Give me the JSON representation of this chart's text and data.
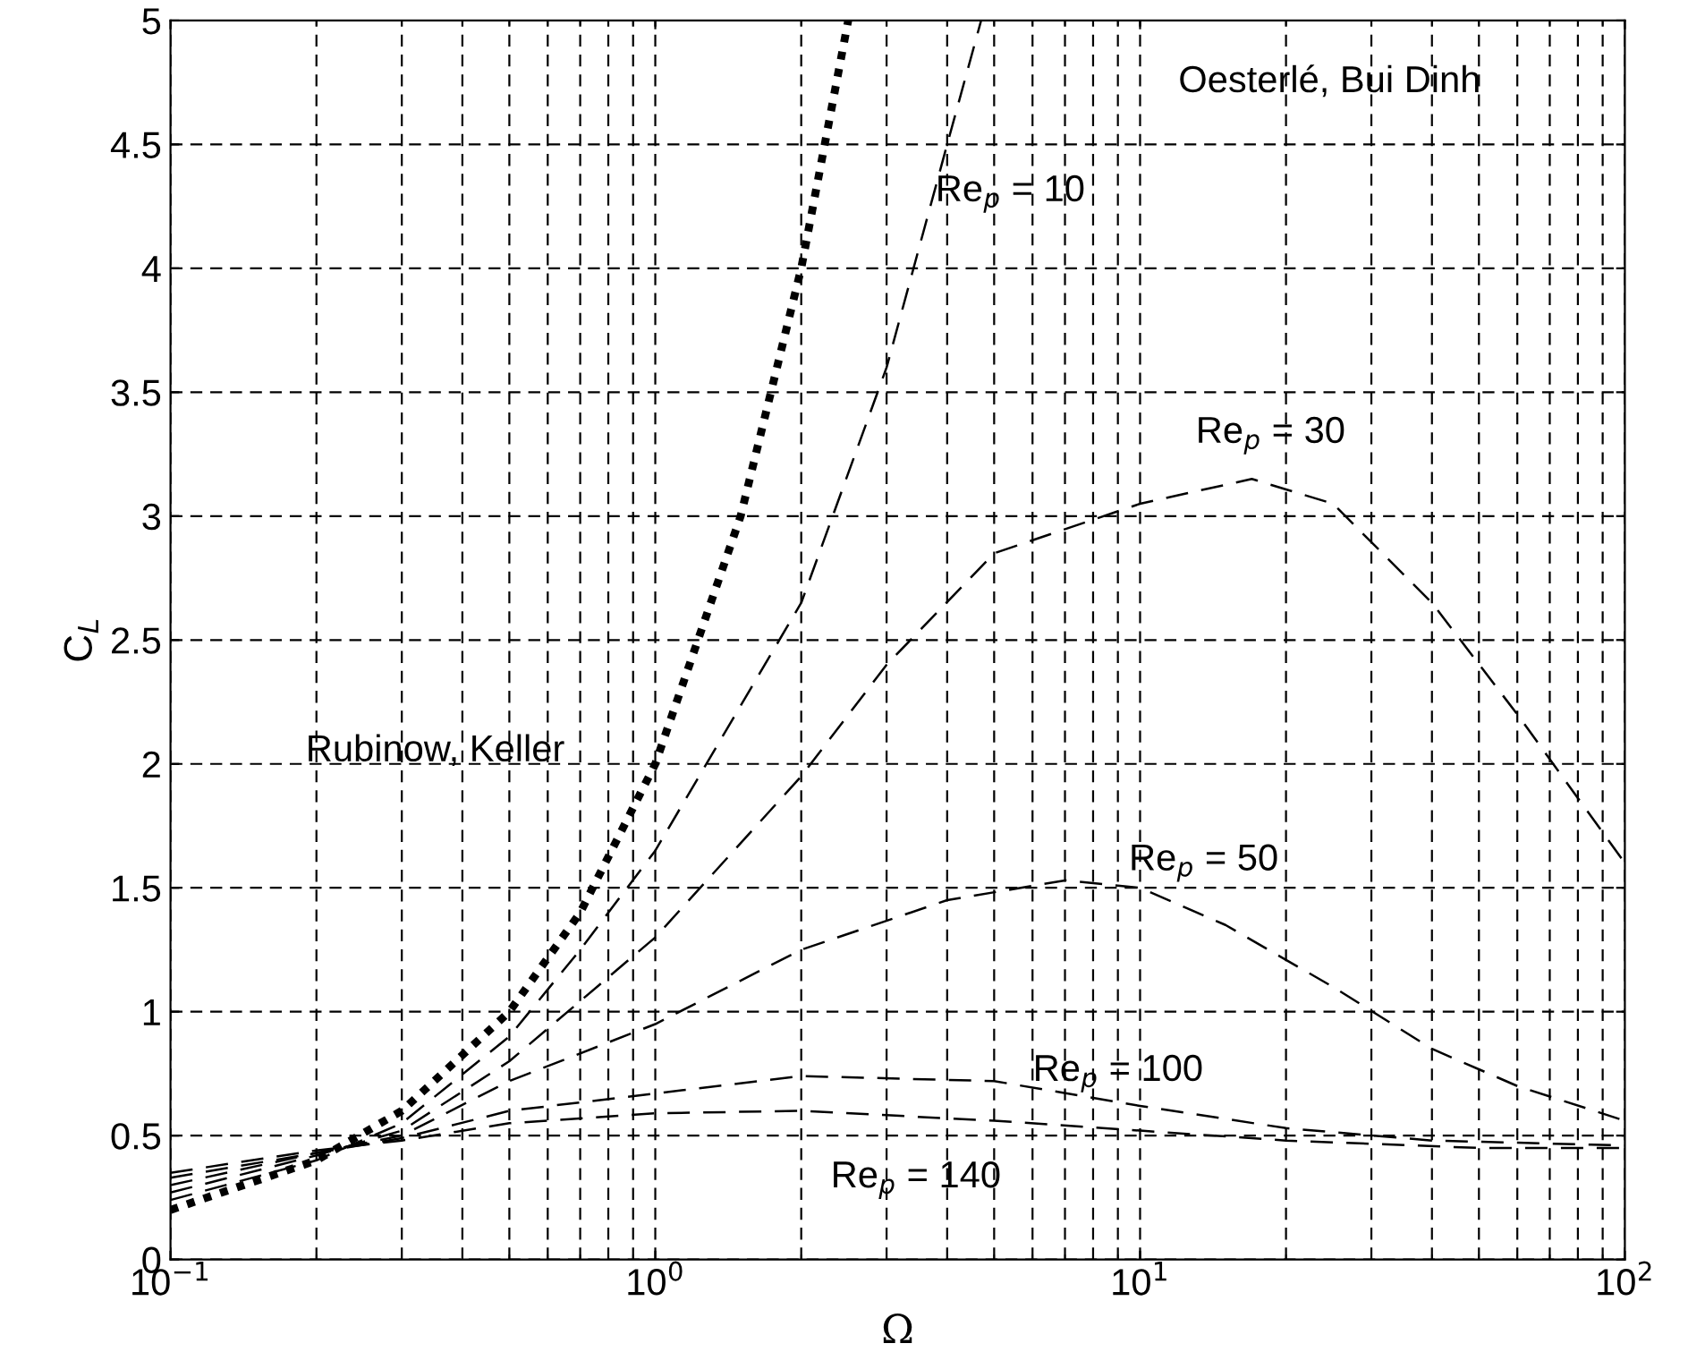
{
  "chart_data": {
    "type": "line",
    "xlabel": "Ω",
    "ylabel": "C$_{L}$",
    "log": "x",
    "grid": true,
    "legend": false,
    "marker": "none",
    "xlim": [
      0.1,
      100
    ],
    "ylim": [
      0,
      5
    ],
    "xticks": [
      {
        "value": 0.1,
        "label": "10$^{−1}$"
      },
      {
        "value": 1,
        "label": "10$^{0}$"
      },
      {
        "value": 10,
        "label": "10$^{1}$"
      },
      {
        "value": 100,
        "label": "10$^{2}$"
      }
    ],
    "yticks": [
      0,
      0.5,
      1,
      1.5,
      2,
      2.5,
      3,
      3.5,
      4,
      4.5,
      5
    ],
    "series": [
      {
        "color": "#000000",
        "line_style": "dotted",
        "x": [
          0.1,
          0.2,
          0.3,
          0.5,
          0.7,
          1,
          1.5,
          2,
          2.5
        ],
        "values": [
          0.2,
          0.4,
          0.6,
          1.0,
          1.4,
          2.0,
          3.0,
          4.0,
          5.0
        ]
      },
      {
        "color": "#000000",
        "line_style": "dashed",
        "x": [
          0.1,
          0.2,
          0.3,
          0.5,
          0.7,
          1,
          2,
          3,
          4,
          4.7
        ],
        "values": [
          0.24,
          0.4,
          0.55,
          0.9,
          1.25,
          1.65,
          2.65,
          3.6,
          4.5,
          5.0
        ]
      },
      {
        "color": "#000000",
        "line_style": "dashed",
        "x": [
          0.1,
          0.2,
          0.3,
          0.5,
          1,
          2,
          3,
          5,
          10,
          17,
          25,
          40,
          60,
          100
        ],
        "values": [
          0.27,
          0.42,
          0.52,
          0.8,
          1.3,
          1.95,
          2.4,
          2.85,
          3.05,
          3.15,
          3.05,
          2.65,
          2.2,
          1.6
        ]
      },
      {
        "color": "#000000",
        "line_style": "dashed",
        "x": [
          0.1,
          0.2,
          0.3,
          0.5,
          1,
          2,
          4,
          7,
          10,
          15,
          25,
          40,
          60,
          100
        ],
        "values": [
          0.3,
          0.43,
          0.5,
          0.72,
          0.95,
          1.25,
          1.45,
          1.53,
          1.5,
          1.35,
          1.1,
          0.85,
          0.7,
          0.56
        ]
      },
      {
        "color": "#000000",
        "line_style": "dashed",
        "x": [
          0.1,
          0.2,
          0.3,
          0.5,
          1,
          2,
          5,
          10,
          20,
          40,
          100
        ],
        "values": [
          0.33,
          0.43,
          0.49,
          0.6,
          0.67,
          0.74,
          0.72,
          0.62,
          0.53,
          0.48,
          0.46
        ]
      },
      {
        "color": "#000000",
        "line_style": "dashed",
        "x": [
          0.1,
          0.2,
          0.3,
          0.5,
          1,
          2,
          5,
          10,
          20,
          50,
          100
        ],
        "values": [
          0.35,
          0.44,
          0.48,
          0.55,
          0.59,
          0.6,
          0.56,
          0.52,
          0.48,
          0.45,
          0.45
        ]
      }
    ],
    "annotations": [
      "Rubinow, Keller",
      "Oesterlé, Bui Dinh",
      "Re$_{p}$ = 10",
      "Re$_{p}$ = 30",
      "Re$_{p}$ = 50",
      "Re$_{p}$ = 100",
      "Re$_{p}$ = 140"
    ]
  }
}
